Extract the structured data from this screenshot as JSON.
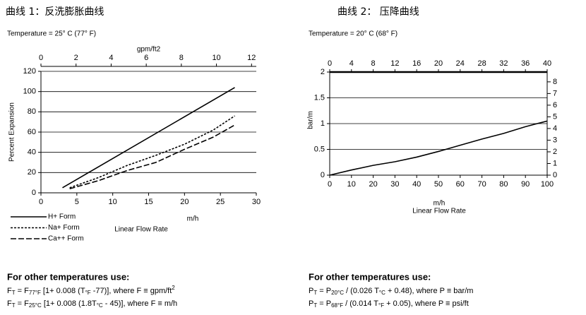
{
  "chart_data": [
    {
      "type": "line",
      "title": "曲线 1：反洗膨胀曲线",
      "subtitle": "Temperature = 25° C (77° F)",
      "x2label": "gpm/ft2",
      "xlabel": "m/h",
      "xlabel2": "Linear Flow Rate",
      "ylabel": "Percent Expansion",
      "xlim": [
        0,
        30
      ],
      "xticks": [
        0,
        5,
        10,
        15,
        20,
        25,
        30
      ],
      "x2lim": [
        0,
        12.27
      ],
      "x2ticks": [
        0,
        2,
        4,
        6,
        8,
        10,
        12
      ],
      "ylim": [
        0,
        120
      ],
      "yticks": [
        0,
        20,
        40,
        60,
        80,
        100,
        120
      ],
      "grid": true,
      "legend": "bottom-left",
      "series": [
        {
          "name": "H+ Form",
          "color": "#000000",
          "line_style": "solid",
          "x": [
            3,
            27
          ],
          "values": [
            5,
            104
          ]
        },
        {
          "name": "Na+ Form",
          "color": "#000000",
          "line_style": "dotted",
          "x": [
            4,
            8,
            12,
            16,
            20,
            24,
            27
          ],
          "values": [
            5,
            15,
            27,
            37,
            48,
            62,
            76
          ]
        },
        {
          "name": "Ca++ Form",
          "color": "#000000",
          "line_style": "dashed",
          "x": [
            4,
            8,
            12,
            16,
            20,
            24,
            27
          ],
          "values": [
            4,
            12,
            22,
            30,
            43,
            55,
            67
          ]
        }
      ],
      "note_heading": "For other temperatures use:",
      "formulas": [
        [
          {
            "text": "F"
          },
          {
            "sub": "T"
          },
          {
            "text": " = F"
          },
          {
            "sub": "77°F"
          },
          {
            "text": " [1+ 0.008 (T"
          },
          {
            "sub": "°F"
          },
          {
            "text": " -77)], where F ≡ gpm/ft"
          },
          {
            "sup": "2"
          }
        ],
        [
          {
            "text": "F"
          },
          {
            "sub": "T"
          },
          {
            "text": " = F"
          },
          {
            "sub": "25°C"
          },
          {
            "text": " [1+ 0.008 (1.8T"
          },
          {
            "sub": "°C"
          },
          {
            "text": " - 45)], where F ≡ m/h"
          }
        ]
      ]
    },
    {
      "type": "line",
      "title": "曲线 2： 压降曲线",
      "subtitle": "Temperature = 20° C (68° F)",
      "xlabel": "m/h",
      "xlabel2": "Linear Flow Rate",
      "ylabel": "bar/m",
      "xlim": [
        0,
        100
      ],
      "xticks": [
        0,
        10,
        20,
        30,
        40,
        50,
        60,
        70,
        80,
        90,
        100
      ],
      "x2lim": [
        0,
        40
      ],
      "x2ticks": [
        0,
        4,
        8,
        12,
        16,
        20,
        24,
        28,
        32,
        36,
        40
      ],
      "ylim": [
        0,
        2
      ],
      "yticks": [
        0,
        0.5,
        1,
        1.5,
        2
      ],
      "y2lim": [
        0,
        8.84
      ],
      "y2ticks": [
        0,
        1,
        2,
        3,
        4,
        5,
        6,
        7,
        8
      ],
      "grid": true,
      "series": [
        {
          "color": "#000000",
          "line_style": "solid",
          "x": [
            0,
            10,
            20,
            30,
            40,
            50,
            60,
            70,
            80,
            90,
            100
          ],
          "values": [
            0,
            0.1,
            0.19,
            0.26,
            0.35,
            0.46,
            0.58,
            0.7,
            0.81,
            0.94,
            1.05
          ]
        }
      ],
      "note_heading": "For other temperatures use:",
      "formulas": [
        [
          {
            "text": "P"
          },
          {
            "sub": "T"
          },
          {
            "text": " = P"
          },
          {
            "sub": "20°C"
          },
          {
            "text": " / (0.026 T"
          },
          {
            "sub": "°C"
          },
          {
            "text": " + 0.48), where P ≡ bar/m"
          }
        ],
        [
          {
            "text": "P"
          },
          {
            "sub": "T"
          },
          {
            "text": " = P"
          },
          {
            "sub": "68°F"
          },
          {
            "text": " / (0.014 T"
          },
          {
            "sub": "°F"
          },
          {
            "text": " + 0.05), where P ≡ psi/ft"
          }
        ]
      ]
    }
  ]
}
